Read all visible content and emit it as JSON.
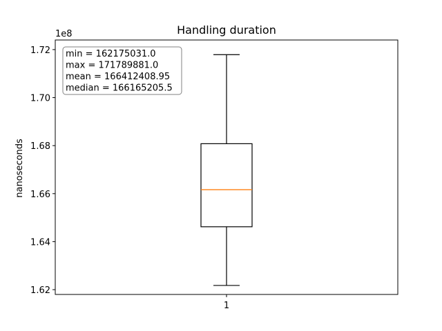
{
  "chart_data": {
    "type": "box",
    "title": "Handling duration",
    "xlabel": "",
    "ylabel": "nanoseconds",
    "offset_label": "1e8",
    "x_tick_labels": [
      "1"
    ],
    "ylim": [
      161800000,
      172400000
    ],
    "y_ticks": [
      162000000,
      164000000,
      166000000,
      168000000,
      170000000,
      172000000
    ],
    "y_tick_labels": [
      "1.62",
      "1.64",
      "1.66",
      "1.68",
      "1.70",
      "1.72"
    ],
    "box": {
      "whisker_low": 162175031.0,
      "q1": 164620000,
      "median": 166165205.5,
      "q3": 168080000,
      "whisker_high": 171789881.0
    },
    "stats_lines": [
      "min = 162175031.0",
      "max = 171789881.0",
      "mean = 166412408.95",
      "median = 166165205.5"
    ],
    "colors": {
      "median_line": "#ff7f0e",
      "box": "#000000",
      "stats_box_edge": "#808080"
    },
    "grid": false
  }
}
